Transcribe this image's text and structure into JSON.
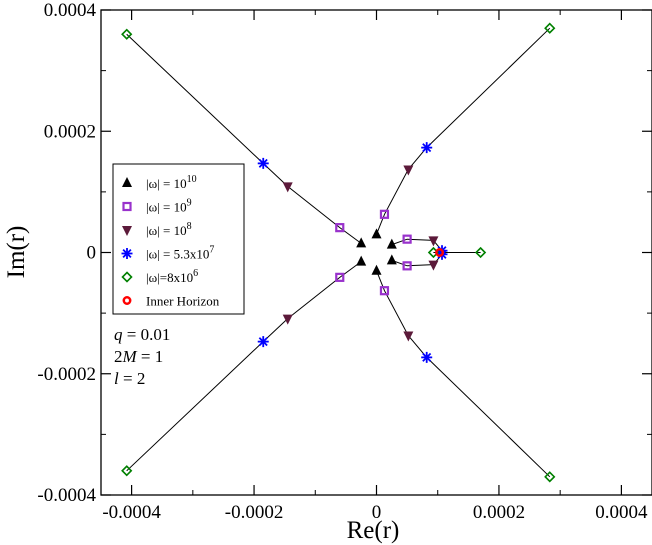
{
  "chart_data": {
    "type": "scatter",
    "xlabel": "Re(r)",
    "ylabel": "Im(r)",
    "xlim": [
      -0.00045,
      0.00045
    ],
    "ylim": [
      -0.0004,
      0.0004
    ],
    "xticks": [
      -0.0004,
      -0.0002,
      0,
      0.0002,
      0.0004
    ],
    "xtick_labels": [
      "-0.0004",
      "-0.0002",
      "0",
      "0.0002",
      "0.0004"
    ],
    "yticks": [
      -0.0004,
      -0.0002,
      0,
      0.0002,
      0.0004
    ],
    "ytick_labels": [
      "-0.0004",
      "-0.0002",
      "0",
      "0.0002",
      "0.0004"
    ],
    "grid": false,
    "legend_position": "middle-left",
    "series": [
      {
        "name": "|ω| = 10^10",
        "label_main": "|ω| = 10",
        "label_sup": "10",
        "marker": "triangle-up",
        "color": "#000000",
        "points": [
          [
            -2.5e-05,
            1.5e-05
          ],
          [
            0.0,
            3e-05
          ],
          [
            2.5e-05,
            1.3e-05
          ],
          [
            -2.5e-05,
            -1.5e-05
          ],
          [
            0.0,
            -3e-05
          ],
          [
            2.5e-05,
            -1.3e-05
          ]
        ]
      },
      {
        "name": "|ω| = 10^9",
        "label_main": "|ω| = 10",
        "label_sup": "9",
        "marker": "square",
        "color": "#9932cc",
        "points": [
          [
            -6e-05,
            4.1e-05
          ],
          [
            1.3e-05,
            6.3e-05
          ],
          [
            5e-05,
            2.2e-05
          ],
          [
            -6e-05,
            -4.1e-05
          ],
          [
            1.3e-05,
            -6.3e-05
          ],
          [
            5e-05,
            -2.2e-05
          ]
        ]
      },
      {
        "name": "|ω| = 10^8",
        "label_main": "|ω| = 10",
        "label_sup": "8",
        "marker": "triangle-down",
        "color": "#5c1a3a",
        "points": [
          [
            -0.000145,
            0.000109
          ],
          [
            5.2e-05,
            0.000137
          ],
          [
            9.3e-05,
            2e-05
          ],
          [
            -0.000145,
            -0.000109
          ],
          [
            5.2e-05,
            -0.000137
          ],
          [
            9.3e-05,
            -2e-05
          ]
        ]
      },
      {
        "name": "|ω| = 5.3x10^7",
        "label_main": "|ω| = 5.3x10",
        "label_sup": "7",
        "marker": "star",
        "color": "#0000ff",
        "points": [
          [
            -0.000185,
            0.000147
          ],
          [
            8.2e-05,
            0.000173
          ],
          [
            0.000107,
            3e-06
          ],
          [
            -0.000185,
            -0.000147
          ],
          [
            8.2e-05,
            -0.000173
          ],
          [
            0.000107,
            -3e-06
          ]
        ]
      },
      {
        "name": "|ω|=8x10^6",
        "label_main": "|ω|=8x10",
        "label_sup": "6",
        "marker": "diamond",
        "color": "#008000",
        "points": [
          [
            -0.000408,
            0.00036
          ],
          [
            0.000283,
            0.00037
          ],
          [
            0.00017,
            0.0
          ],
          [
            9.3e-05,
            0.0
          ],
          [
            -0.000408,
            -0.00036
          ],
          [
            0.000283,
            -0.00037
          ]
        ]
      },
      {
        "name": "Inner Horizon",
        "label_main": "Inner Horizon",
        "label_sup": "",
        "marker": "circle",
        "color": "#ff0000",
        "points": [
          [
            0.000103,
            0.0
          ]
        ]
      }
    ],
    "trajectories": [
      [
        [
          -2.5e-05,
          1.5e-05
        ],
        [
          -6e-05,
          4.1e-05
        ],
        [
          -0.000145,
          0.000109
        ],
        [
          -0.000185,
          0.000147
        ],
        [
          -0.000408,
          0.00036
        ]
      ],
      [
        [
          0.0,
          3e-05
        ],
        [
          1.3e-05,
          6.3e-05
        ],
        [
          5.2e-05,
          0.000137
        ],
        [
          8.2e-05,
          0.000173
        ],
        [
          0.000283,
          0.00037
        ]
      ],
      [
        [
          2.5e-05,
          1.3e-05
        ],
        [
          5e-05,
          2.2e-05
        ],
        [
          9.3e-05,
          2e-05
        ],
        [
          0.000107,
          3e-06
        ],
        [
          0.000103,
          0.0
        ]
      ],
      [
        [
          -2.5e-05,
          -1.5e-05
        ],
        [
          -6e-05,
          -4.1e-05
        ],
        [
          -0.000145,
          -0.000109
        ],
        [
          -0.000185,
          -0.000147
        ],
        [
          -0.000408,
          -0.00036
        ]
      ],
      [
        [
          0.0,
          -3e-05
        ],
        [
          1.3e-05,
          -6.3e-05
        ],
        [
          5.2e-05,
          -0.000137
        ],
        [
          8.2e-05,
          -0.000173
        ],
        [
          0.000283,
          -0.00037
        ]
      ],
      [
        [
          2.5e-05,
          -1.3e-05
        ],
        [
          5e-05,
          -2.2e-05
        ],
        [
          9.3e-05,
          -2e-05
        ],
        [
          0.000107,
          -3e-06
        ],
        [
          0.000103,
          0.0
        ]
      ],
      [
        [
          9.3e-05,
          0.0
        ],
        [
          0.00017,
          0.0
        ]
      ]
    ],
    "annotations": [
      {
        "var": "q",
        "rest": " = 0.01"
      },
      {
        "pre": "2",
        "var": "M",
        "rest": " = 1"
      },
      {
        "var": "l",
        "rest": " = 2"
      }
    ]
  }
}
